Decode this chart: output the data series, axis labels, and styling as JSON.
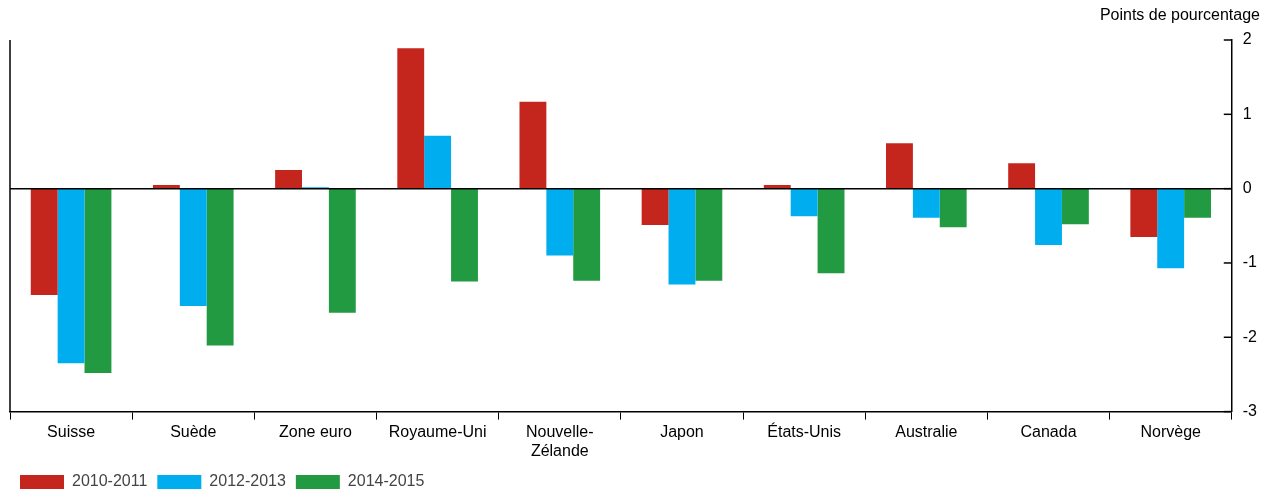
{
  "chart_data": {
    "type": "bar",
    "ylabel": "Points de pourcentage",
    "categories": [
      "Suisse",
      "Suède",
      "Zone euro",
      "Royaume-Uni",
      "Nouvelle-Zélande",
      "Japon",
      "États-Unis",
      "Australie",
      "Canada",
      "Norvège"
    ],
    "series": [
      {
        "name": "2010-2011",
        "color": "#c4261d",
        "values": [
          -1.43,
          0.05,
          0.25,
          1.89,
          1.17,
          -0.49,
          0.05,
          0.61,
          0.34,
          -0.65
        ]
      },
      {
        "name": "2012-2013",
        "color": "#00aeef",
        "values": [
          -2.35,
          -1.58,
          0.02,
          0.71,
          -0.9,
          -1.29,
          -0.37,
          -0.39,
          -0.76,
          -1.07
        ]
      },
      {
        "name": "2014-2015",
        "color": "#229a41",
        "values": [
          -2.48,
          -2.11,
          -1.67,
          -1.25,
          -1.24,
          -1.24,
          -1.14,
          -0.52,
          -0.48,
          -0.39
        ]
      }
    ],
    "ref_lines": [
      {
        "axis": "y",
        "value": 0,
        "color": "#000000"
      }
    ],
    "ylim": [
      -3,
      2
    ],
    "yticks": [
      -3,
      -2,
      -1,
      0,
      1,
      2
    ],
    "grid": false,
    "legend": "bottom left"
  }
}
